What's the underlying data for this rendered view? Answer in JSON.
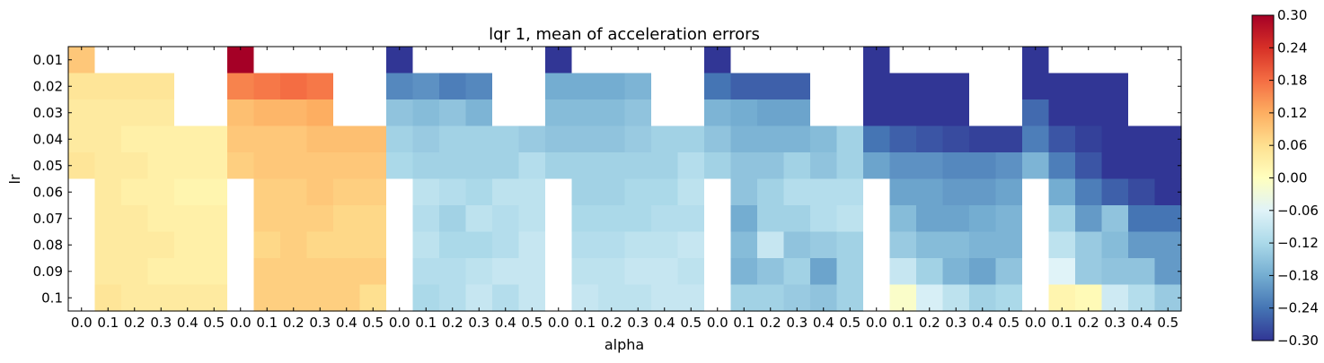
{
  "chart_data": {
    "type": "heatmap",
    "title": "lqr 1, mean of acceleration errors",
    "xlabel": "alpha",
    "ylabel": "lr",
    "x_tick_labels": [
      "0.0",
      "0.1",
      "0.2",
      "0.3",
      "0.4",
      "0.5",
      "0.0",
      "0.1",
      "0.2",
      "0.3",
      "0.4",
      "0.5",
      "0.0",
      "0.1",
      "0.2",
      "0.3",
      "0.4",
      "0.5",
      "0.0",
      "0.1",
      "0.2",
      "0.3",
      "0.4",
      "0.5",
      "0.0",
      "0.1",
      "0.2",
      "0.3",
      "0.4",
      "0.5",
      "0.0",
      "0.1",
      "0.2",
      "0.3",
      "0.4",
      "0.5",
      "0.0",
      "0.1",
      "0.2",
      "0.3",
      "0.4",
      "0.5"
    ],
    "y_tick_labels": [
      "0.01",
      "0.02",
      "0.03",
      "0.04",
      "0.05",
      "0.06",
      "0.07",
      "0.08",
      "0.09",
      "0.1"
    ],
    "colorbar": {
      "min": -0.3,
      "max": 0.3,
      "tick_values": [
        0.3,
        0.24,
        0.18,
        0.12,
        0.06,
        0.0,
        -0.06,
        -0.12,
        -0.18,
        -0.24,
        -0.3
      ],
      "tick_labels": [
        "0.30",
        "0.24",
        "0.18",
        "0.12",
        "0.06",
        "0.00",
        "−0.06",
        "−0.12",
        "−0.18",
        "−0.24",
        "−0.30"
      ],
      "colormap": "RdYlBu_r"
    },
    "missing_color": "#ffffff",
    "values": [
      [
        0.09,
        null,
        null,
        null,
        null,
        null,
        0.3,
        null,
        null,
        null,
        null,
        null,
        -0.3,
        null,
        null,
        null,
        null,
        null,
        -0.3,
        null,
        null,
        null,
        null,
        null,
        -0.3,
        null,
        null,
        null,
        null,
        null,
        -0.3,
        null,
        null,
        null,
        null,
        null,
        -0.3,
        null,
        null,
        null,
        null,
        null
      ],
      [
        0.05,
        0.05,
        0.05,
        0.05,
        null,
        null,
        0.16,
        0.17,
        0.18,
        0.17,
        null,
        null,
        -0.22,
        -0.21,
        -0.23,
        -0.22,
        null,
        null,
        -0.18,
        -0.18,
        -0.18,
        -0.17,
        null,
        null,
        -0.24,
        -0.26,
        -0.26,
        -0.26,
        null,
        null,
        -0.3,
        -0.3,
        -0.3,
        -0.3,
        null,
        null,
        -0.3,
        -0.3,
        -0.3,
        -0.3,
        null,
        null
      ],
      [
        0.04,
        0.04,
        0.04,
        0.04,
        null,
        null,
        0.1,
        0.11,
        0.11,
        0.12,
        null,
        null,
        -0.15,
        -0.16,
        -0.15,
        -0.17,
        null,
        null,
        -0.16,
        -0.16,
        -0.16,
        -0.15,
        null,
        null,
        -0.17,
        -0.18,
        -0.19,
        -0.19,
        null,
        null,
        -0.3,
        -0.3,
        -0.3,
        -0.3,
        null,
        null,
        -0.25,
        -0.3,
        -0.3,
        -0.3,
        null,
        null
      ],
      [
        0.04,
        0.04,
        0.03,
        0.03,
        0.03,
        0.03,
        0.09,
        0.09,
        0.09,
        0.1,
        0.1,
        0.1,
        -0.13,
        -0.14,
        -0.13,
        -0.13,
        -0.13,
        -0.14,
        -0.15,
        -0.15,
        -0.15,
        -0.14,
        -0.13,
        -0.13,
        -0.15,
        -0.17,
        -0.17,
        -0.17,
        -0.16,
        -0.13,
        -0.24,
        -0.26,
        -0.27,
        -0.28,
        -0.29,
        -0.29,
        -0.23,
        -0.27,
        -0.29,
        -0.3,
        -0.3,
        -0.3
      ],
      [
        0.05,
        0.04,
        0.04,
        0.03,
        0.03,
        0.03,
        0.08,
        0.09,
        0.09,
        0.09,
        0.09,
        0.09,
        -0.12,
        -0.13,
        -0.13,
        -0.13,
        -0.13,
        -0.11,
        -0.13,
        -0.13,
        -0.13,
        -0.13,
        -0.13,
        -0.11,
        -0.13,
        -0.15,
        -0.15,
        -0.13,
        -0.15,
        -0.13,
        -0.19,
        -0.21,
        -0.21,
        -0.22,
        -0.22,
        -0.21,
        -0.17,
        -0.23,
        -0.27,
        -0.3,
        -0.3,
        -0.3
      ],
      [
        null,
        0.04,
        0.03,
        0.03,
        0.02,
        0.02,
        null,
        0.08,
        0.08,
        0.09,
        0.08,
        0.08,
        null,
        -0.1,
        -0.11,
        -0.12,
        -0.1,
        -0.1,
        null,
        -0.13,
        -0.13,
        -0.12,
        -0.12,
        -0.1,
        null,
        -0.15,
        -0.13,
        -0.11,
        -0.11,
        -0.11,
        null,
        -0.19,
        -0.19,
        -0.2,
        -0.2,
        -0.19,
        null,
        -0.18,
        -0.23,
        -0.26,
        -0.28,
        -0.3
      ],
      [
        null,
        0.04,
        0.04,
        0.03,
        0.03,
        0.03,
        null,
        0.08,
        0.08,
        0.08,
        0.07,
        0.07,
        null,
        -0.11,
        -0.13,
        -0.1,
        -0.11,
        -0.1,
        null,
        -0.12,
        -0.12,
        -0.12,
        -0.11,
        -0.11,
        null,
        -0.18,
        -0.13,
        -0.13,
        -0.11,
        -0.1,
        null,
        -0.16,
        -0.19,
        -0.19,
        -0.18,
        -0.17,
        null,
        -0.13,
        -0.2,
        -0.15,
        -0.24,
        -0.24
      ],
      [
        null,
        0.04,
        0.04,
        0.04,
        0.03,
        0.03,
        null,
        0.07,
        0.08,
        0.07,
        0.07,
        0.07,
        null,
        -0.1,
        -0.12,
        -0.12,
        -0.11,
        -0.09,
        null,
        -0.11,
        -0.11,
        -0.1,
        -0.1,
        -0.09,
        null,
        -0.16,
        -0.09,
        -0.15,
        -0.14,
        -0.13,
        null,
        -0.14,
        -0.16,
        -0.16,
        -0.17,
        -0.17,
        null,
        -0.1,
        -0.14,
        -0.16,
        -0.2,
        -0.2
      ],
      [
        null,
        0.04,
        0.04,
        0.03,
        0.03,
        0.03,
        null,
        0.08,
        0.08,
        0.08,
        0.08,
        0.08,
        null,
        -0.11,
        -0.11,
        -0.1,
        -0.09,
        -0.09,
        null,
        -0.1,
        -0.1,
        -0.09,
        -0.09,
        -0.1,
        null,
        -0.17,
        -0.15,
        -0.13,
        -0.19,
        -0.13,
        null,
        -0.09,
        -0.13,
        -0.17,
        -0.19,
        -0.15,
        null,
        -0.06,
        -0.14,
        -0.15,
        -0.15,
        -0.2
      ],
      [
        null,
        0.05,
        0.04,
        0.04,
        0.04,
        0.04,
        null,
        0.08,
        0.08,
        0.08,
        0.08,
        0.06,
        null,
        -0.12,
        -0.11,
        -0.09,
        -0.11,
        -0.09,
        null,
        -0.09,
        -0.1,
        -0.1,
        -0.09,
        -0.09,
        null,
        -0.13,
        -0.13,
        -0.14,
        -0.15,
        -0.13,
        null,
        -0.01,
        -0.07,
        -0.1,
        -0.13,
        -0.12,
        null,
        0.02,
        0.01,
        -0.08,
        -0.11,
        -0.14
      ]
    ]
  }
}
